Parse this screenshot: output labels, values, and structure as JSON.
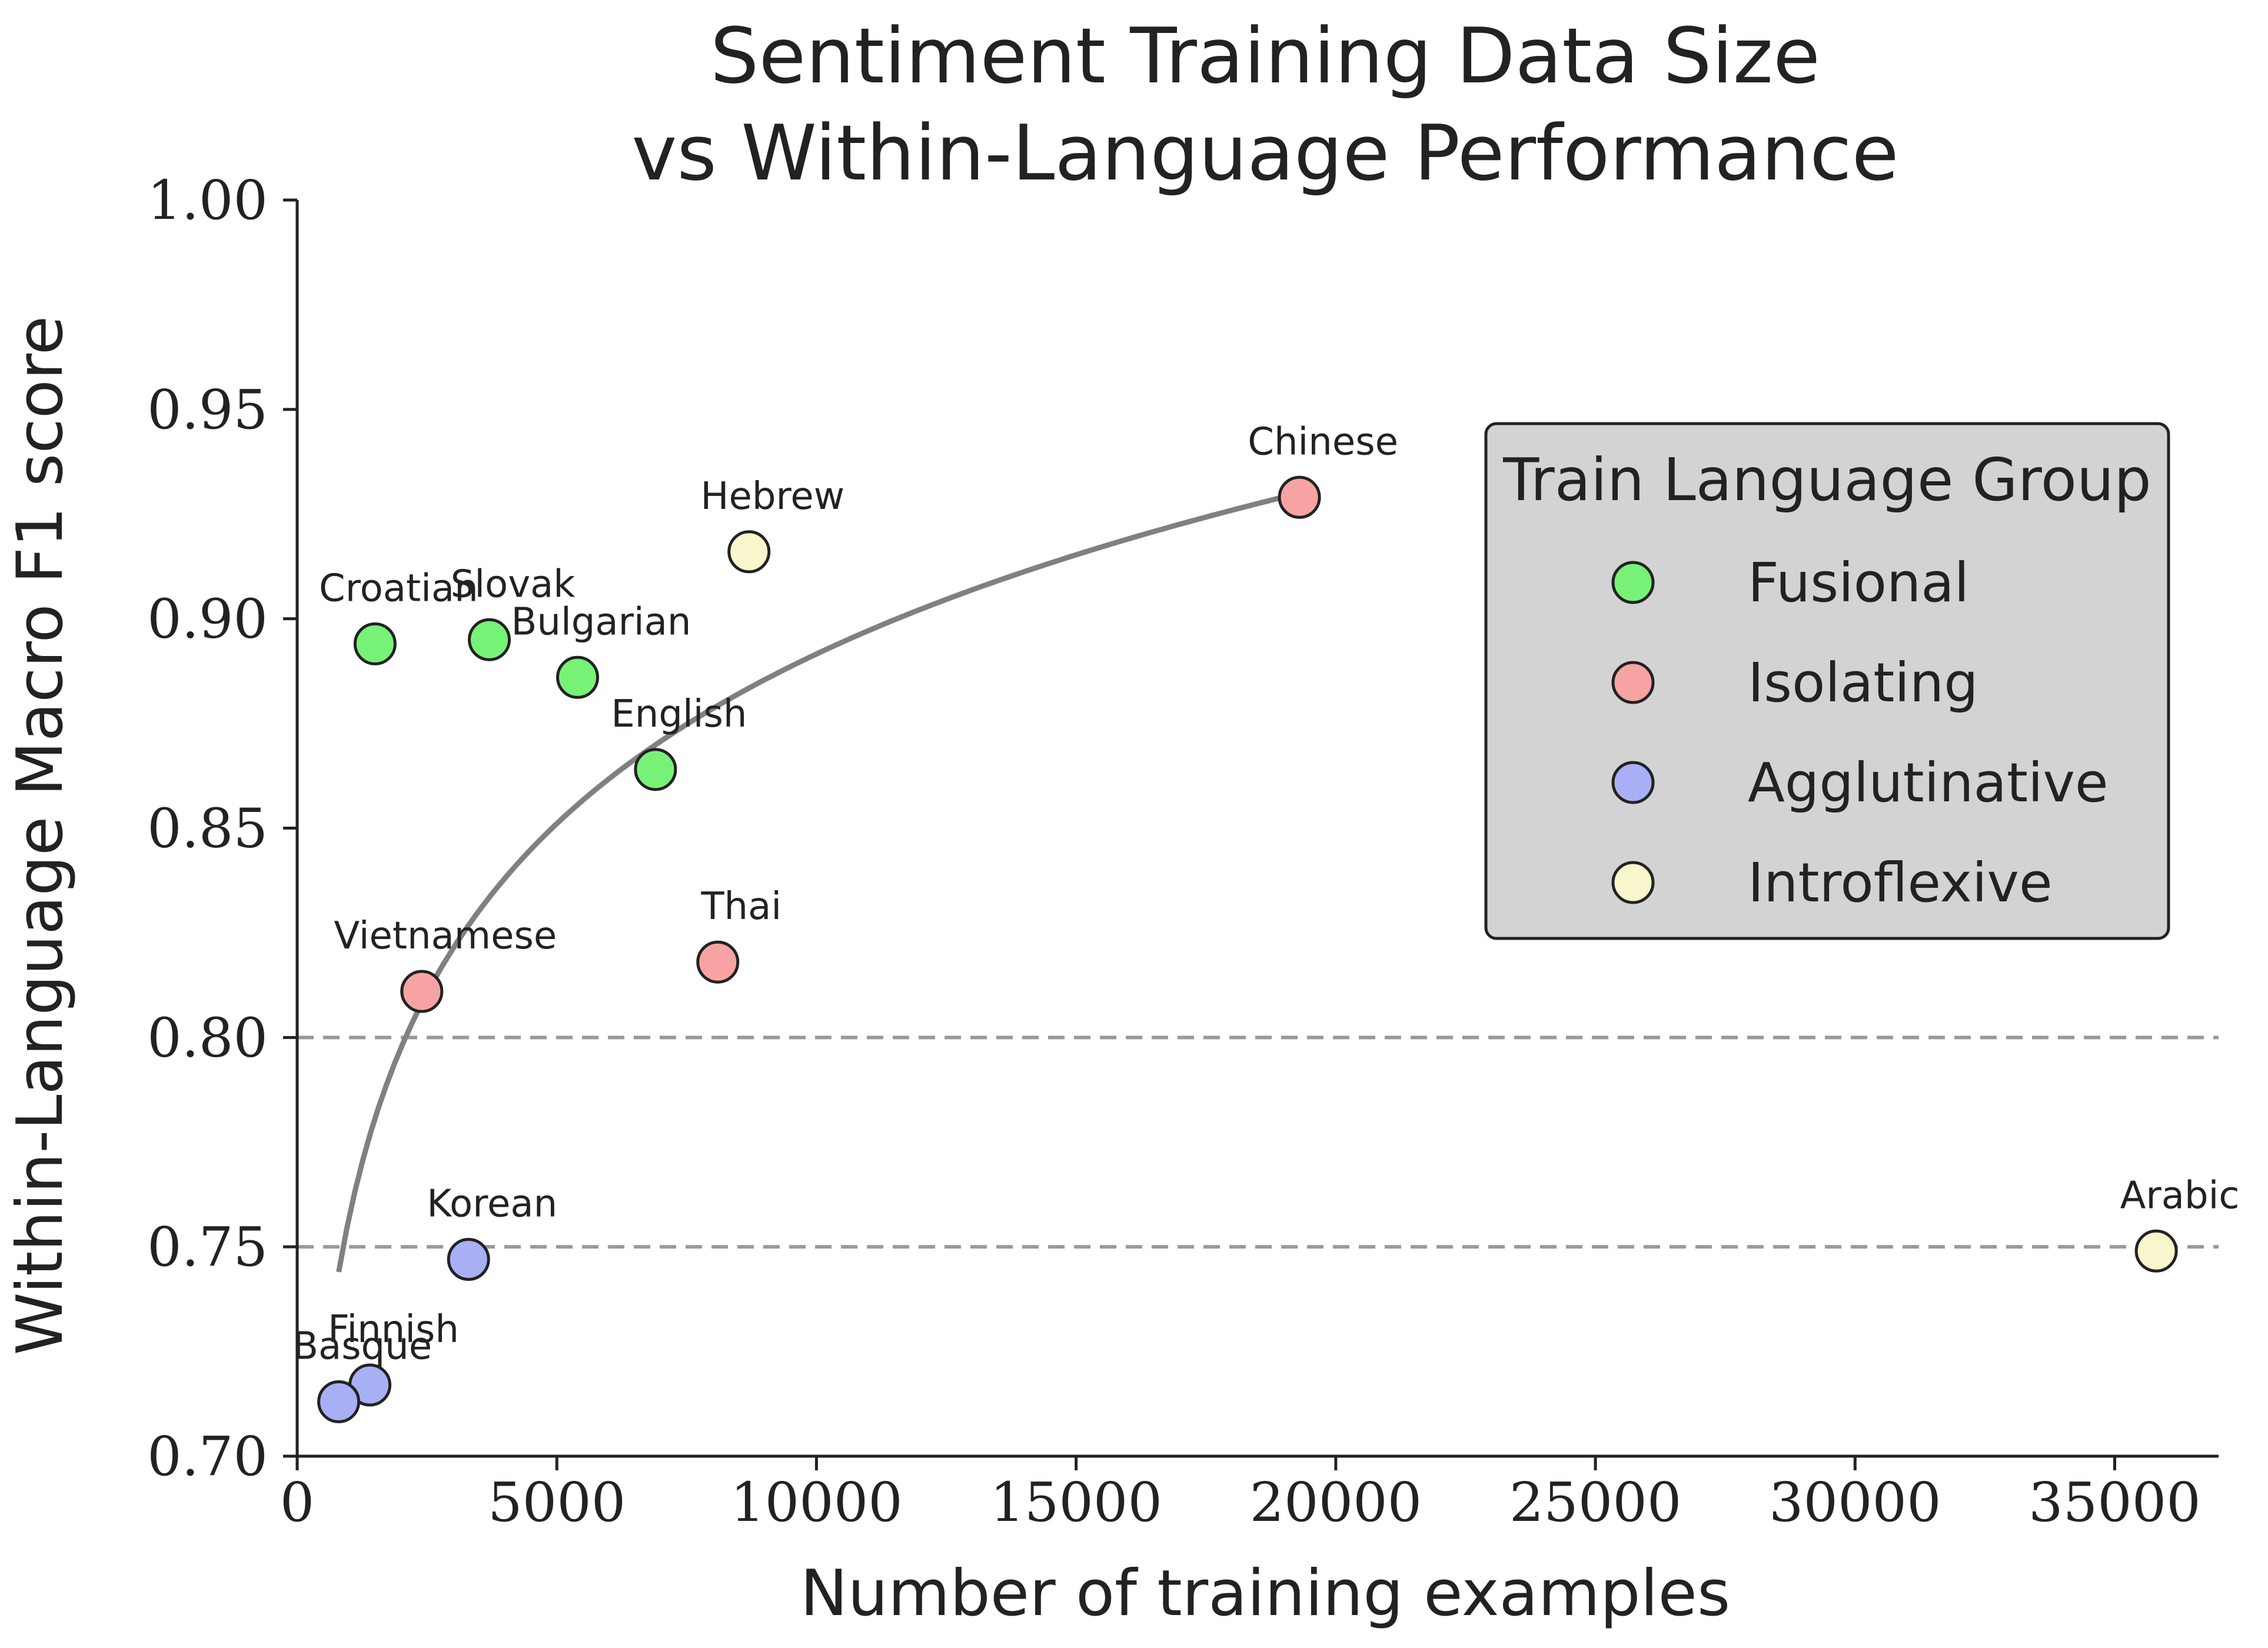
{
  "chart_data": {
    "type": "scatter",
    "title": [
      "Sentiment Training Data Size",
      "vs Within-Language Performance"
    ],
    "xlabel": "Number of training examples",
    "ylabel": "Within-Language Macro F1 score",
    "xlim": [
      0,
      37000
    ],
    "ylim": [
      0.7,
      1.0
    ],
    "xticks": [
      0,
      5000,
      10000,
      15000,
      20000,
      25000,
      30000,
      35000
    ],
    "yticks": [
      "0.70",
      "0.75",
      "0.80",
      "0.85",
      "0.90",
      "0.95",
      "1.00"
    ],
    "grid": false,
    "reference_lines": [
      0.8,
      0.75
    ],
    "legend": {
      "title": "Train Language Group",
      "placement": "upper right",
      "items": [
        {
          "name": "Fusional",
          "color": "#77f277"
        },
        {
          "name": "Isolating",
          "color": "#f8a3a3"
        },
        {
          "name": "Agglutinative",
          "color": "#a9aff5"
        },
        {
          "name": "Introflexive",
          "color": "#f8f6cc"
        }
      ]
    },
    "points": [
      {
        "label": "Croatian",
        "x": 1500,
        "y": 0.894,
        "group": "Fusional"
      },
      {
        "label": "Slovak",
        "x": 3700,
        "y": 0.895,
        "group": "Fusional"
      },
      {
        "label": "Bulgarian",
        "x": 5400,
        "y": 0.886,
        "group": "Fusional"
      },
      {
        "label": "English",
        "x": 6900,
        "y": 0.864,
        "group": "Fusional"
      },
      {
        "label": "Chinese",
        "x": 19300,
        "y": 0.929,
        "group": "Isolating"
      },
      {
        "label": "Thai",
        "x": 8100,
        "y": 0.818,
        "group": "Isolating"
      },
      {
        "label": "Vietnamese",
        "x": 2400,
        "y": 0.811,
        "group": "Isolating"
      },
      {
        "label": "Korean",
        "x": 3300,
        "y": 0.747,
        "group": "Agglutinative"
      },
      {
        "label": "Finnish",
        "x": 1400,
        "y": 0.717,
        "group": "Agglutinative"
      },
      {
        "label": "Basque",
        "x": 800,
        "y": 0.713,
        "group": "Agglutinative"
      },
      {
        "label": "Hebrew",
        "x": 8700,
        "y": 0.916,
        "group": "Introflexive"
      },
      {
        "label": "Arabic",
        "x": 35800,
        "y": 0.749,
        "group": "Introflexive"
      }
    ],
    "trend_line": {
      "type": "logarithmic",
      "x_start": 800,
      "x_end": 19300,
      "y_start": 0.744,
      "y_end": 0.93,
      "color": "#808080"
    }
  }
}
